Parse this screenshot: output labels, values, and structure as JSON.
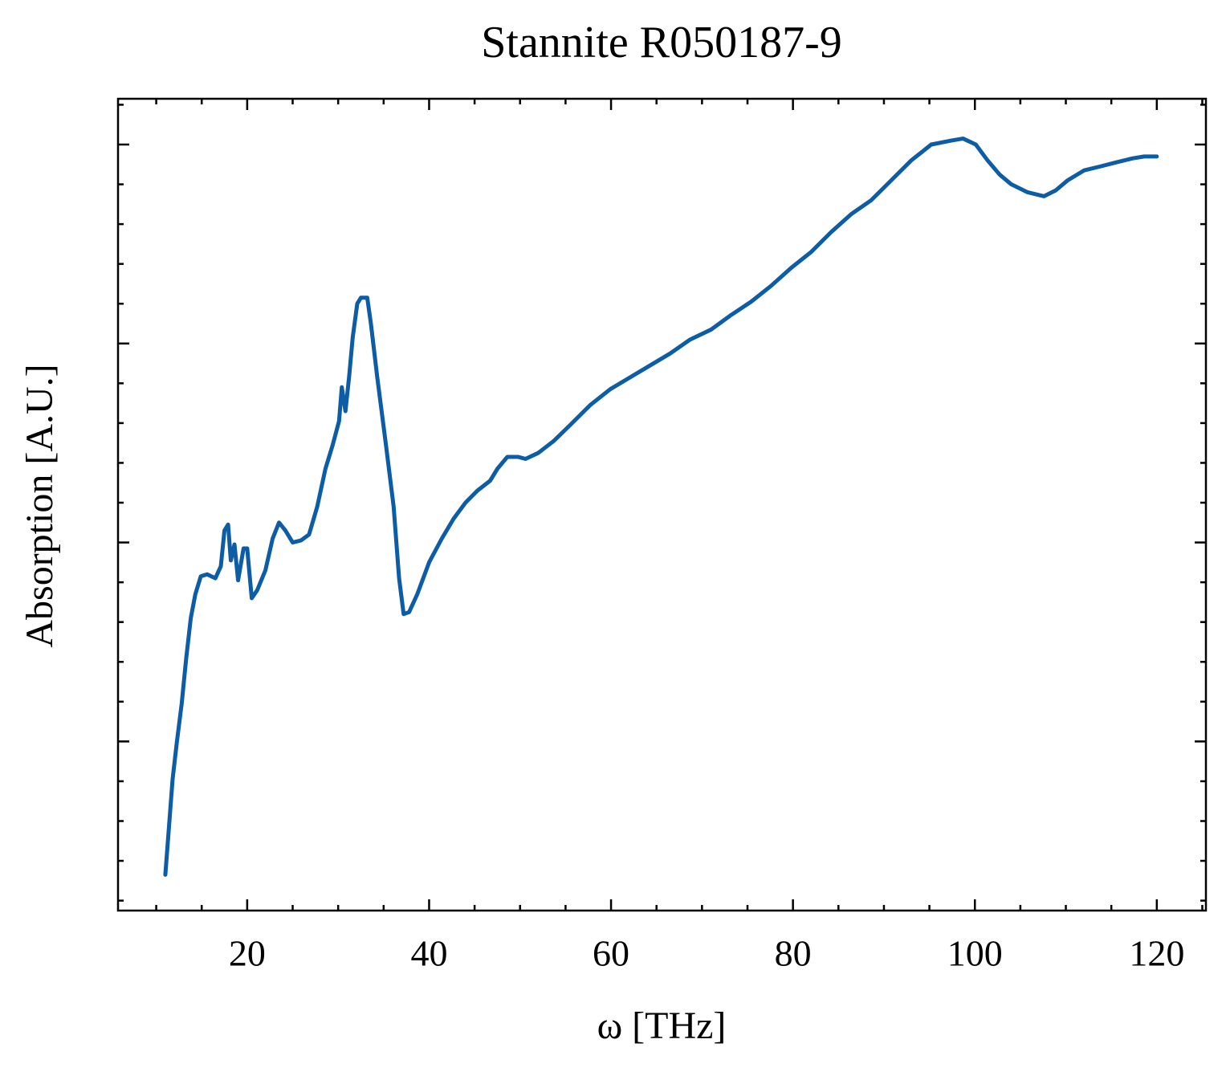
{
  "chart_data": {
    "type": "line",
    "title": "Stannite R050187-9",
    "x_label": "ω [THz]",
    "y_label": "Absorption [A.U.]",
    "xlim": [
      5.8,
      125.4
    ],
    "ylim": [
      0.15,
      4.23
    ],
    "xticks": [
      20,
      40,
      60,
      80,
      100,
      120
    ],
    "yticks": [
      1,
      2,
      3,
      4
    ],
    "show_ytick_labels": false,
    "xminorticks": [
      10,
      15,
      25,
      30,
      35,
      45,
      50,
      55,
      65,
      70,
      75,
      85,
      90,
      95,
      105,
      110,
      115,
      125
    ],
    "yminorticks": [
      0.2,
      0.4,
      0.6,
      0.8,
      1.2,
      1.4,
      1.6,
      1.8,
      2.2,
      2.4,
      2.6,
      2.8,
      3.2,
      3.4,
      3.6,
      3.8,
      4.2
    ],
    "series": [
      {
        "color": "#0c5da5",
        "x": [
          11.0,
          11.4,
          11.8,
          12.25,
          12.8,
          13.3,
          13.8,
          14.3,
          14.9,
          15.6,
          16.5,
          17.1,
          17.5,
          17.9,
          18.2,
          18.6,
          19.0,
          19.6,
          20.0,
          20.5,
          21.1,
          22.0,
          22.8,
          23.5,
          24.2,
          25.0,
          25.9,
          26.8,
          27.7,
          28.6,
          29.4,
          30.1,
          30.4,
          30.8,
          31.2,
          31.6,
          32.1,
          32.5,
          33.2,
          33.6,
          34.3,
          35.2,
          36.1,
          36.7,
          37.2,
          37.8,
          38.7,
          40.0,
          41.4,
          42.7,
          44.0,
          45.3,
          46.7,
          47.5,
          48.6,
          49.8,
          50.6,
          52.0,
          53.7,
          55.5,
          57.7,
          59.9,
          62.1,
          64.3,
          66.5,
          68.7,
          71.0,
          73.1,
          75.4,
          77.6,
          79.8,
          82.0,
          84.2,
          86.4,
          88.6,
          90.8,
          93.0,
          95.2,
          97.4,
          98.7,
          100.1,
          101.4,
          102.7,
          104.0,
          105.8,
          107.6,
          108.9,
          110.2,
          112.0,
          113.8,
          115.5,
          117.3,
          118.6,
          120.0
        ],
        "values": [
          0.33,
          0.57,
          0.81,
          0.99,
          1.19,
          1.42,
          1.62,
          1.74,
          1.83,
          1.84,
          1.82,
          1.88,
          2.06,
          2.09,
          1.91,
          1.99,
          1.81,
          1.97,
          1.97,
          1.72,
          1.76,
          1.86,
          2.02,
          2.1,
          2.06,
          2.0,
          2.01,
          2.04,
          2.18,
          2.37,
          2.49,
          2.61,
          2.78,
          2.66,
          2.83,
          3.03,
          3.2,
          3.23,
          3.23,
          3.1,
          2.83,
          2.51,
          2.18,
          1.82,
          1.64,
          1.65,
          1.74,
          1.9,
          2.02,
          2.12,
          2.2,
          2.26,
          2.31,
          2.37,
          2.43,
          2.43,
          2.42,
          2.45,
          2.51,
          2.59,
          2.69,
          2.77,
          2.83,
          2.89,
          2.95,
          3.02,
          3.07,
          3.14,
          3.21,
          3.29,
          3.38,
          3.46,
          3.56,
          3.65,
          3.72,
          3.82,
          3.92,
          4.0,
          4.02,
          4.03,
          4.0,
          3.92,
          3.85,
          3.8,
          3.76,
          3.74,
          3.77,
          3.82,
          3.87,
          3.89,
          3.91,
          3.93,
          3.94,
          3.94
        ]
      }
    ]
  }
}
